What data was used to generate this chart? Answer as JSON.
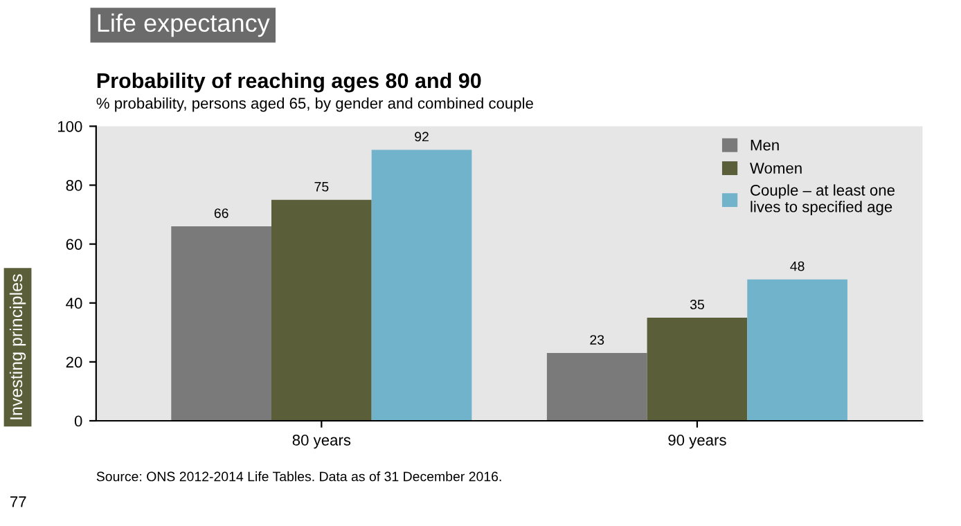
{
  "chart_data": {
    "type": "bar",
    "title": "Probability of reaching ages 80 and 90",
    "subtitle": "% probability, persons aged 65, by gender and combined couple",
    "categories": [
      "80 years",
      "90 years"
    ],
    "series": [
      {
        "name": "Men",
        "color": "#7a7a7a",
        "values": [
          66,
          23
        ]
      },
      {
        "name": "Women",
        "color": "#5a5f3a",
        "values": [
          75,
          35
        ]
      },
      {
        "name": "Couple – at least one lives to specified age",
        "color": "#72b3cc",
        "values": [
          92,
          48
        ]
      }
    ],
    "ylim": [
      0,
      100
    ],
    "yticks": [
      0,
      20,
      40,
      60,
      80,
      100
    ],
    "grid": false,
    "legend": "top right",
    "data_labels": true,
    "annotations": [
      "Life expectancy",
      "Source: ONS 2012-2014 Life Tables. Data as of 31 December 2016.",
      "Investing principles",
      "77"
    ]
  }
}
